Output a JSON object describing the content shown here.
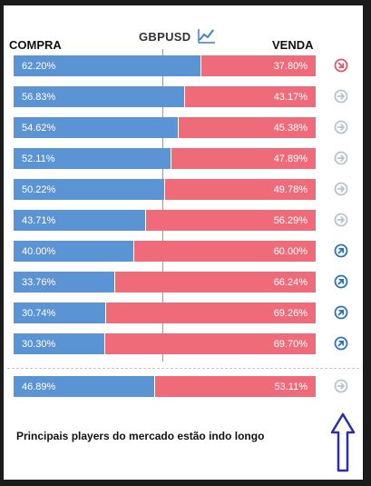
{
  "header": {
    "buy_label": "COMPRA",
    "sell_label": "VENDA",
    "symbol": "GBPUSD",
    "chart_icon": "line-chart-icon"
  },
  "colors": {
    "buy": "#5b94d5",
    "sell": "#ef6b7a",
    "signal_neutral": "#b9c3cc",
    "signal_long": "#2a73b8",
    "signal_short": "#e0566a",
    "annotation_arrow": "#2b2fa8"
  },
  "rows": [
    {
      "buy": "62.20%",
      "sell": "37.80%",
      "signal": "short"
    },
    {
      "buy": "56.83%",
      "sell": "43.17%",
      "signal": "neutral"
    },
    {
      "buy": "54.62%",
      "sell": "45.38%",
      "signal": "neutral"
    },
    {
      "buy": "52.11%",
      "sell": "47.89%",
      "signal": "neutral"
    },
    {
      "buy": "50.22%",
      "sell": "49.78%",
      "signal": "neutral"
    },
    {
      "buy": "43.71%",
      "sell": "56.29%",
      "signal": "neutral"
    },
    {
      "buy": "40.00%",
      "sell": "60.00%",
      "signal": "long"
    },
    {
      "buy": "33.76%",
      "sell": "66.24%",
      "signal": "long"
    },
    {
      "buy": "30.74%",
      "sell": "69.26%",
      "signal": "long"
    },
    {
      "buy": "30.30%",
      "sell": "69.70%",
      "signal": "long"
    }
  ],
  "summary": {
    "buy": "46.89%",
    "sell": "53.11%",
    "signal": "neutral"
  },
  "message": "Principais players do mercado estão indo longo",
  "annotation": "up-arrow-icon"
}
